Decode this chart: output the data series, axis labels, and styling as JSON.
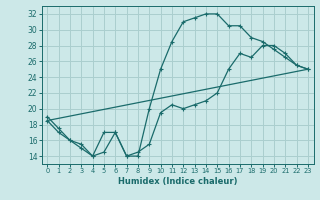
{
  "xlabel": "Humidex (Indice chaleur)",
  "bg_color": "#cce8e8",
  "grid_color": "#aacece",
  "line_color": "#1a6b6b",
  "xlim": [
    -0.5,
    23.5
  ],
  "ylim": [
    13,
    33
  ],
  "yticks": [
    14,
    16,
    18,
    20,
    22,
    24,
    26,
    28,
    30,
    32
  ],
  "xticks": [
    0,
    1,
    2,
    3,
    4,
    5,
    6,
    7,
    8,
    9,
    10,
    11,
    12,
    13,
    14,
    15,
    16,
    17,
    18,
    19,
    20,
    21,
    22,
    23
  ],
  "line1_x": [
    0,
    1,
    2,
    3,
    4,
    5,
    6,
    7,
    8,
    9,
    10,
    11,
    12,
    13,
    14,
    15,
    16,
    17,
    18,
    19,
    20,
    21,
    22,
    23
  ],
  "line1_y": [
    19,
    17.5,
    16,
    15,
    14,
    17,
    17,
    14,
    14,
    20,
    25,
    28.5,
    31,
    31.5,
    32,
    32,
    30.5,
    30.5,
    29,
    28.5,
    27.5,
    26.5,
    25.5,
    25
  ],
  "line2_x": [
    0,
    1,
    2,
    3,
    4,
    5,
    6,
    7,
    8,
    9,
    10,
    11,
    12,
    13,
    14,
    15,
    16,
    17,
    18,
    19,
    20,
    21,
    22,
    23
  ],
  "line2_y": [
    18.5,
    17,
    16,
    15.5,
    14,
    14.5,
    17,
    14,
    14.5,
    15.5,
    19.5,
    20.5,
    20,
    20.5,
    21,
    22,
    25,
    27,
    26.5,
    28,
    28,
    27,
    25.5,
    25
  ],
  "line3_x": [
    0,
    23
  ],
  "line3_y": [
    18.5,
    25
  ]
}
